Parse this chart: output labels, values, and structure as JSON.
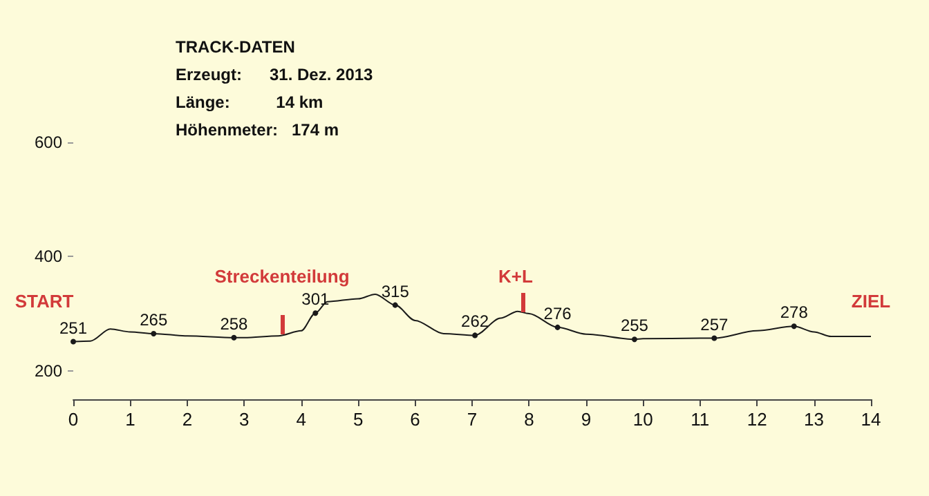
{
  "chart_data": {
    "type": "line",
    "title": "TRACK-DATEN",
    "annotations": [
      "Erzeugt:      31. Dez. 2013",
      "Länge:          14 km",
      "Höhenmeter:   174 m",
      "START",
      "Streckenteilung",
      "K+L",
      "ZIEL"
    ],
    "x": [
      0,
      0.3,
      0.65,
      1,
      1.41,
      2,
      2.82,
      3,
      3.6,
      4,
      4.25,
      4.46,
      5,
      5.3,
      5.65,
      6,
      6.5,
      7.05,
      7.5,
      7.8,
      8,
      8.5,
      9,
      9.85,
      10,
      11,
      11.25,
      12,
      12.65,
      13,
      13.3,
      14
    ],
    "series": [
      {
        "color": "#1a1a1a",
        "values": [
          251,
          252,
          273,
          268,
          265,
          261,
          258,
          258,
          261,
          270,
          301,
          321,
          326,
          334,
          315,
          288,
          265,
          262,
          292,
          304,
          300,
          276,
          264,
          255,
          256,
          257,
          257,
          270,
          278,
          268,
          260,
          260
        ],
        "value_labels": [
          "251",
          null,
          null,
          null,
          "265",
          null,
          "258",
          null,
          null,
          null,
          "301",
          null,
          null,
          null,
          "315",
          null,
          null,
          "262",
          null,
          null,
          null,
          "276",
          null,
          "255",
          null,
          null,
          "257",
          null,
          "278",
          null,
          null,
          null
        ]
      }
    ],
    "xlim": [
      0,
      14
    ],
    "xticks": [
      0,
      1,
      2,
      3,
      4,
      5,
      6,
      7,
      8,
      9,
      10,
      11,
      12,
      13,
      14
    ],
    "ylim": [
      150,
      600
    ],
    "yticks": [
      200,
      400,
      600
    ],
    "grid": false,
    "line_style": "solid"
  }
}
